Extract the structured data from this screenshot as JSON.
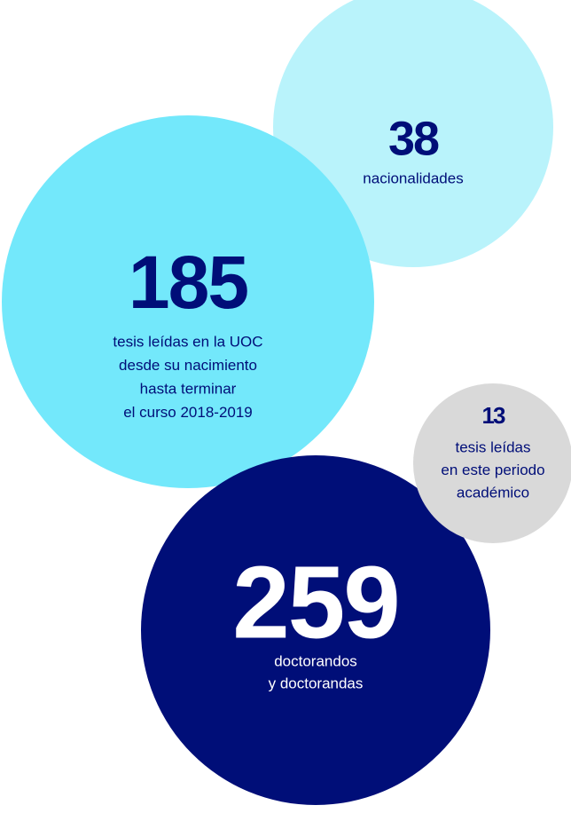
{
  "bubbles": [
    {
      "number": "38",
      "lines": [
        "nacionalidades"
      ]
    },
    {
      "number": "185",
      "lines": [
        "tesis leídas en la UOC",
        "desde su nacimiento",
        "hasta terminar",
        "el curso 2018-2019"
      ]
    },
    {
      "number": "259",
      "lines": [
        "doctorandos",
        "y doctorandas"
      ]
    },
    {
      "number": "13",
      "lines": [
        "tesis leídas",
        "en este periodo",
        "académico"
      ]
    }
  ]
}
